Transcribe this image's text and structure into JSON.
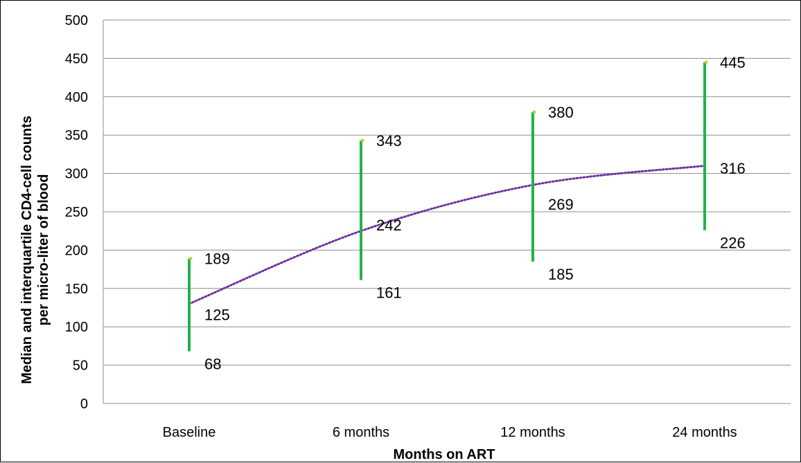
{
  "chart_data": {
    "type": "line",
    "title": "",
    "xlabel": "Months on ART",
    "ylabel_lines": [
      "Median and interquartile CD4-cell counts",
      "per micro-liter of blood"
    ],
    "categories": [
      "Baseline",
      "6 months",
      "12 months",
      "24 months"
    ],
    "ylim": [
      0,
      500
    ],
    "yticks": [
      "0",
      "50",
      "100",
      "150",
      "200",
      "250",
      "300",
      "350",
      "400",
      "450",
      "500"
    ],
    "grid": true,
    "legend": "none",
    "series": [
      {
        "values": [
          189,
          343,
          380,
          445
        ],
        "labels": [
          "189",
          "343",
          "380",
          "445"
        ]
      },
      {
        "values": [
          125,
          242,
          269,
          316
        ],
        "labels": [
          "125",
          "242",
          "269",
          "316"
        ]
      },
      {
        "values": [
          68,
          161,
          185,
          226
        ],
        "labels": [
          "68",
          "161",
          "185",
          "226"
        ]
      }
    ],
    "trend_curve": [
      130,
      225,
      285,
      310
    ],
    "colors": {
      "range_bar": "#22b14c",
      "trend": "#7030a0",
      "grid": "#8c8c8c",
      "cap": "#b5d334"
    }
  }
}
